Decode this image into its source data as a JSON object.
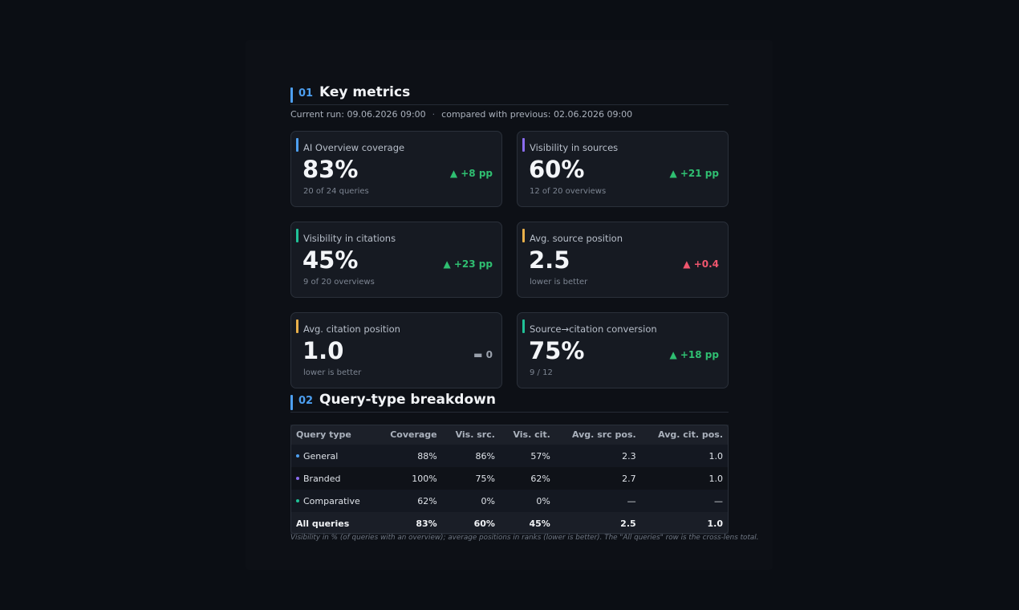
{
  "sections": {
    "key_metrics": {
      "num": "01",
      "title": "Key metrics"
    },
    "breakdown": {
      "num": "02",
      "title": "Query-type breakdown"
    }
  },
  "run": {
    "current": "Current run: 09.06.2026 09:00",
    "separator": "·",
    "previous": "compared with previous: 02.06.2026 09:00"
  },
  "cards": [
    {
      "label": "AI Overview coverage",
      "value": "83%",
      "sub": "20 of 24 queries",
      "delta": "▲ +8 pp",
      "accent": "#4d9ff0",
      "delta_color": "#2fbf71"
    },
    {
      "label": "Visibility in sources",
      "value": "60%",
      "sub": "12 of 20 overviews",
      "delta": "▲ +21 pp",
      "accent": "#8b6cf0",
      "delta_color": "#2fbf71"
    },
    {
      "label": "Visibility in citations",
      "value": "45%",
      "sub": "9 of 20 overviews",
      "delta": "▲ +23 pp",
      "accent": "#20c197",
      "delta_color": "#2fbf71"
    },
    {
      "label": "Avg. source position",
      "value": "2.5",
      "sub": "lower is better",
      "delta": "▲ +0.4",
      "accent": "#e9b04a",
      "delta_color": "#f0566e"
    },
    {
      "label": "Avg. citation position",
      "value": "1.0",
      "sub": "lower is better",
      "delta": "▬ 0",
      "accent": "#e9b04a",
      "delta_color": "#9aa1ac"
    },
    {
      "label": "Source→citation conversion",
      "value": "75%",
      "sub": "9 / 12",
      "delta": "▲ +18 pp",
      "accent": "#20c197",
      "delta_color": "#2fbf71"
    }
  ],
  "table": {
    "headers": [
      "Query type",
      "Coverage",
      "Vis. src.",
      "Vis. cit.",
      "Avg. src pos.",
      "Avg. cit. pos."
    ],
    "rows": [
      {
        "type": "General",
        "dot": "#4d9ff0",
        "cells": [
          "88%",
          "86%",
          "57%",
          "2.3",
          "1.0"
        ]
      },
      {
        "type": "Branded",
        "dot": "#8b6cf0",
        "cells": [
          "100%",
          "75%",
          "62%",
          "2.7",
          "1.0"
        ]
      },
      {
        "type": "Comparative",
        "dot": "#20c197",
        "cells": [
          "62%",
          "0%",
          "0%",
          "—",
          "—"
        ]
      }
    ],
    "total": {
      "type": "All queries",
      "cells": [
        "83%",
        "60%",
        "45%",
        "2.5",
        "1.0"
      ]
    }
  },
  "footnote": "Visibility in % (of queries with an overview); average positions in ranks (lower is better). The \"All queries\" row is the cross-lens total."
}
